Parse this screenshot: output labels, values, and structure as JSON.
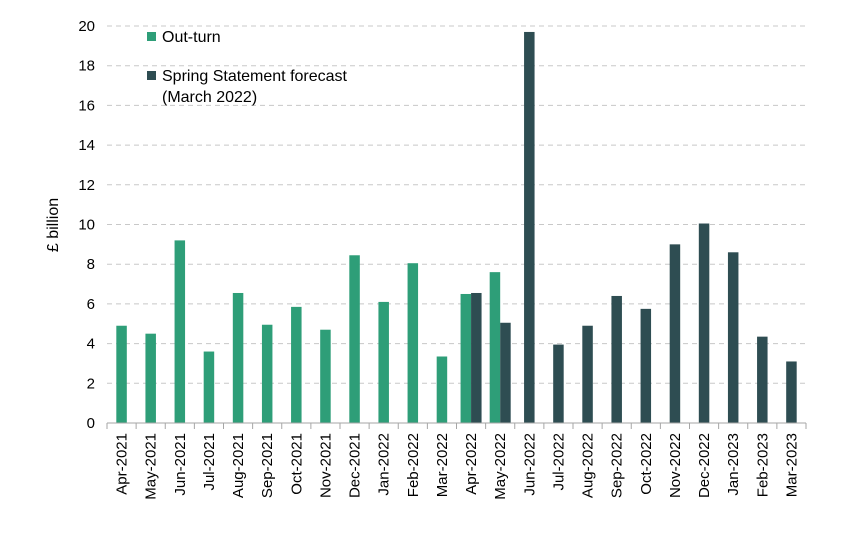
{
  "chart_data": {
    "type": "bar",
    "title": "",
    "xlabel": "",
    "ylabel": "£ billion",
    "ylim": [
      0,
      20
    ],
    "yticks": [
      0,
      2,
      4,
      6,
      8,
      10,
      12,
      14,
      16,
      18,
      20
    ],
    "grid": "horizontal-dashed",
    "legend_position": "top-left",
    "categories": [
      "Apr-2021",
      "May-2021",
      "Jun-2021",
      "Jul-2021",
      "Aug-2021",
      "Sep-2021",
      "Oct-2021",
      "Nov-2021",
      "Dec-2021",
      "Jan-2022",
      "Feb-2022",
      "Mar-2022",
      "Apr-2022",
      "May-2022",
      "Jun-2022",
      "Jul-2022",
      "Aug-2022",
      "Sep-2022",
      "Oct-2022",
      "Nov-2022",
      "Dec-2022",
      "Jan-2023",
      "Feb-2023",
      "Mar-2023"
    ],
    "series": [
      {
        "name": "Out-turn",
        "color": "#2e9e78",
        "values": [
          4.9,
          4.5,
          9.2,
          3.6,
          6.55,
          4.95,
          5.85,
          4.7,
          8.45,
          6.1,
          8.05,
          3.35,
          6.5,
          7.6,
          null,
          null,
          null,
          null,
          null,
          null,
          null,
          null,
          null,
          null
        ]
      },
      {
        "name": "Spring Statement forecast (March 2022)",
        "legend_lines": [
          "Spring Statement forecast",
          "(March 2022)"
        ],
        "color": "#2e4d52",
        "values": [
          null,
          null,
          null,
          null,
          null,
          null,
          null,
          null,
          null,
          null,
          null,
          null,
          6.55,
          5.05,
          19.7,
          3.95,
          4.9,
          6.4,
          5.75,
          9.0,
          10.05,
          8.6,
          4.35,
          3.1
        ]
      }
    ]
  }
}
